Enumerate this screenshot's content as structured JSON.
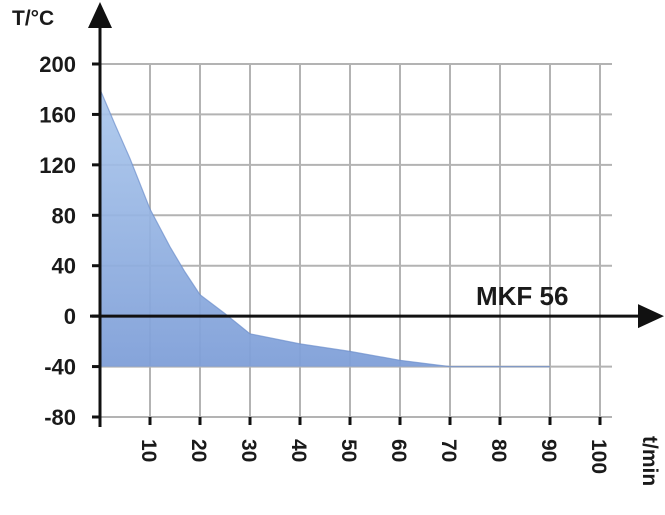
{
  "chart_data": {
    "type": "area",
    "title": "",
    "xlabel": "t/min",
    "ylabel": "T/°C",
    "xlim": [
      0,
      100
    ],
    "ylim": [
      -80,
      200
    ],
    "x_ticks": [
      10,
      20,
      30,
      40,
      50,
      60,
      70,
      80,
      90,
      100
    ],
    "y_ticks": [
      200,
      160,
      120,
      80,
      40,
      0,
      -40,
      -80
    ],
    "x_tick_labels": [
      "10",
      "20",
      "30",
      "40",
      "50",
      "60",
      "70",
      "80",
      "90",
      "100"
    ],
    "y_tick_labels": [
      "200",
      "160",
      "120",
      "80",
      "40",
      "0",
      "-40",
      "-80"
    ],
    "grid": true,
    "fill_base": -40,
    "series": [
      {
        "name": "MKF 56",
        "x": [
          0,
          3,
          6,
          10,
          14,
          17,
          20,
          25,
          30,
          40,
          50,
          60,
          70,
          80,
          90
        ],
        "y": [
          180,
          152,
          125,
          85,
          55,
          35,
          17,
          2,
          -14,
          -22,
          -28,
          -35,
          -40,
          -40,
          -40
        ]
      }
    ],
    "colors": {
      "fill_top": "#a9c6ec",
      "fill_bottom": "#7f9fd8",
      "edge": "#6c8fcc",
      "grid": "#b3b3b3",
      "axis": "#111111",
      "text": "#1a1a1a"
    }
  }
}
